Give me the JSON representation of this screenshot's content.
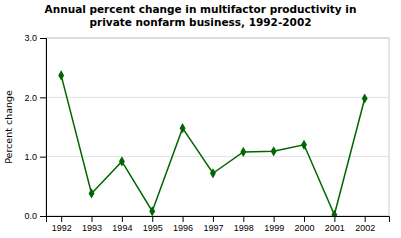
{
  "chart_data": {
    "type": "line",
    "title": "Annual percent change in multifactor productivity in",
    "subtitle": "private nonfarm business, 1992-2002",
    "y_label": "Percent change",
    "x": [
      1992,
      1993,
      1994,
      1995,
      1996,
      1997,
      1998,
      1999,
      2000,
      2001,
      2002
    ],
    "values": [
      2.37,
      0.38,
      0.92,
      0.08,
      1.48,
      0.72,
      1.08,
      1.09,
      1.2,
      0.02,
      1.98
    ],
    "color": "#006600",
    "marker": "diamond",
    "xlim": [
      1991.5,
      2002.8
    ],
    "xticks": [
      1992,
      1993,
      1994,
      1995,
      1996,
      1997,
      1998,
      1999,
      2000,
      2001,
      2002
    ],
    "ylim": [
      0.0,
      3.0
    ],
    "yticks": [
      {
        "value": 0.0,
        "label": "0.0"
      },
      {
        "value": 1.0,
        "label": "1.0"
      },
      {
        "value": 2.0,
        "label": "2.0"
      },
      {
        "value": 3.0,
        "label": "3.0"
      }
    ],
    "grid": true
  }
}
